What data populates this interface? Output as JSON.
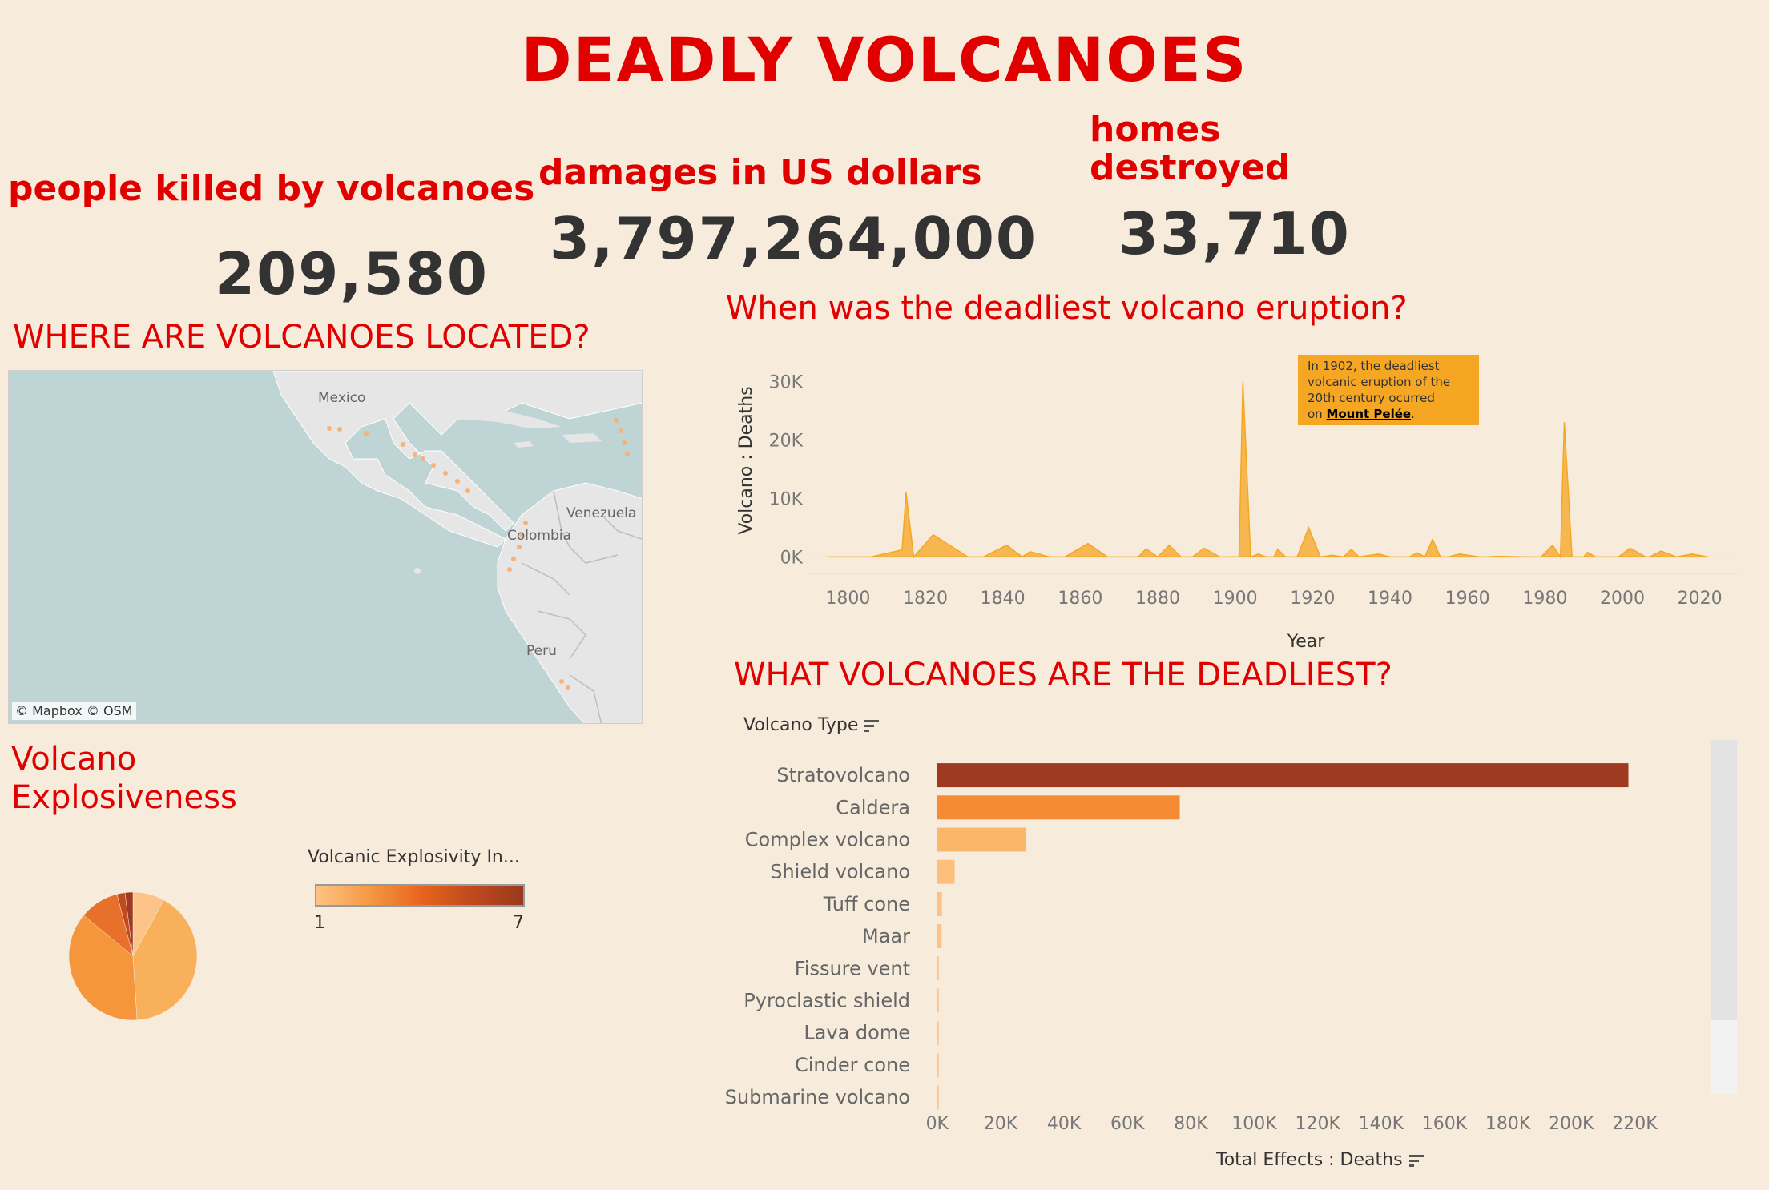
{
  "title": "DEADLY VOLCANOES",
  "kpis": {
    "killed": {
      "label": "people killed by volcanoes",
      "value": "209,580"
    },
    "damages": {
      "label": "damages in US dollars",
      "value": "3,797,264,000"
    },
    "homes": {
      "label_line1": "homes",
      "label_line2": "destroyed",
      "value": "33,710"
    }
  },
  "sections": {
    "map": "WHERE ARE VOLCANOES LOCATED?",
    "timeline": "When was the deadliest volcano eruption?",
    "bars": "WHAT VOLCANOES ARE THE DEADLIEST?",
    "pie_line1": "Volcano",
    "pie_line2": "Explosiveness"
  },
  "map": {
    "attribution": "© Mapbox  © OSM",
    "labels": [
      "Mexico",
      "Venezuela",
      "Colombia",
      "Peru"
    ],
    "water_color": "#bfd4d4",
    "land_color": "#e6e6e6",
    "point_color": "#f5b37a"
  },
  "legend": {
    "title": "Volcanic Explosivity In...",
    "min": "1",
    "max": "7"
  },
  "annotation": {
    "line1": "In 1902, the deadliest",
    "line2": "volcanic eruption of the",
    "line3": "20th century ocurred",
    "line4_prefix": "on ",
    "volcano": "Mount Pelée",
    "line4_suffix": "."
  },
  "chart_data": [
    {
      "type": "area",
      "title": "When was the deadliest volcano eruption?",
      "xlabel": "Year",
      "ylabel": "Volcano : Deaths",
      "xlim": [
        1790,
        2030
      ],
      "ylim": [
        -2000,
        35000
      ],
      "x_ticks": [
        1800,
        1820,
        1840,
        1860,
        1880,
        1900,
        1920,
        1940,
        1960,
        1980,
        2000,
        2020
      ],
      "y_ticks": [
        {
          "v": 0,
          "label": "0K"
        },
        {
          "v": 10000,
          "label": "10K"
        },
        {
          "v": 20000,
          "label": "20K"
        },
        {
          "v": 30000,
          "label": "30K"
        }
      ],
      "color": "#f5a623",
      "x": [
        1795,
        1806,
        1814,
        1815,
        1817,
        1822,
        1831,
        1835,
        1841,
        1845,
        1847,
        1852,
        1856,
        1862,
        1867,
        1875,
        1877,
        1880,
        1883,
        1886,
        1889,
        1892,
        1896,
        1901,
        1902,
        1904,
        1906,
        1908,
        1910,
        1911,
        1913,
        1916,
        1919,
        1922,
        1925,
        1928,
        1930,
        1932,
        1937,
        1940,
        1945,
        1947,
        1949,
        1951,
        1953,
        1955,
        1958,
        1963,
        1965,
        1968,
        1975,
        1979,
        1982,
        1984,
        1985,
        1987,
        1990,
        1991,
        1993,
        1996,
        1999,
        2002,
        2006,
        2007,
        2010,
        2014,
        2018,
        2022
      ],
      "values": [
        0,
        0,
        1200,
        11000,
        0,
        3800,
        0,
        0,
        2000,
        0,
        900,
        0,
        0,
        2300,
        0,
        0,
        1400,
        0,
        2000,
        0,
        0,
        1500,
        0,
        0,
        30000,
        0,
        500,
        0,
        0,
        1300,
        0,
        0,
        5000,
        0,
        300,
        0,
        1300,
        0,
        500,
        0,
        0,
        700,
        0,
        3000,
        0,
        0,
        500,
        0,
        0,
        100,
        0,
        0,
        2000,
        0,
        23000,
        0,
        0,
        800,
        0,
        0,
        0,
        1500,
        0,
        0,
        1000,
        0,
        500,
        0
      ]
    },
    {
      "type": "bar",
      "title": "WHAT VOLCANOES ARE THE DEADLIEST?",
      "category_title": "Volcano Type",
      "xlabel": "Total Effects : Deaths",
      "xlim": [
        -5000,
        230000
      ],
      "x_ticks": [
        {
          "v": 0,
          "label": "0K"
        },
        {
          "v": 20000,
          "label": "20K"
        },
        {
          "v": 40000,
          "label": "40K"
        },
        {
          "v": 60000,
          "label": "60K"
        },
        {
          "v": 80000,
          "label": "80K"
        },
        {
          "v": 100000,
          "label": "100K"
        },
        {
          "v": 120000,
          "label": "120K"
        },
        {
          "v": 140000,
          "label": "140K"
        },
        {
          "v": 160000,
          "label": "160K"
        },
        {
          "v": 180000,
          "label": "180K"
        },
        {
          "v": 200000,
          "label": "200K"
        },
        {
          "v": 220000,
          "label": "220K"
        }
      ],
      "categories": [
        "Stratovolcano",
        "Caldera",
        "Complex volcano",
        "Shield volcano",
        "Tuff cone",
        "Maar",
        "Fissure vent",
        "Pyroclastic shield",
        "Lava dome",
        "Cinder cone",
        "Submarine volcano"
      ],
      "values": [
        218000,
        76500,
        28000,
        5500,
        1500,
        1400,
        500,
        300,
        250,
        200,
        150
      ],
      "colors": [
        "#9f3a22",
        "#f58b35",
        "#fbb769",
        "#fcc07c",
        "#fcc384",
        "#fcc384",
        "#fdc68a",
        "#fdc68a",
        "#fdc68a",
        "#fdc68a",
        "#fdc68a"
      ]
    },
    {
      "type": "pie",
      "title": "Volcano Explosiveness",
      "legend_title": "Volcanic Explosivity In...",
      "slices": [
        {
          "vei": 1,
          "value": 8,
          "color": "#fdc48a"
        },
        {
          "vei": 2,
          "value": 41,
          "color": "#f8b05a"
        },
        {
          "vei": 3,
          "value": 37,
          "color": "#f5963d"
        },
        {
          "vei": 4,
          "value": 10,
          "color": "#e8702a"
        },
        {
          "vei": 5,
          "value": 2,
          "color": "#c24a1f"
        },
        {
          "vei": 6,
          "value": 2,
          "color": "#9f3a22"
        }
      ]
    }
  ]
}
